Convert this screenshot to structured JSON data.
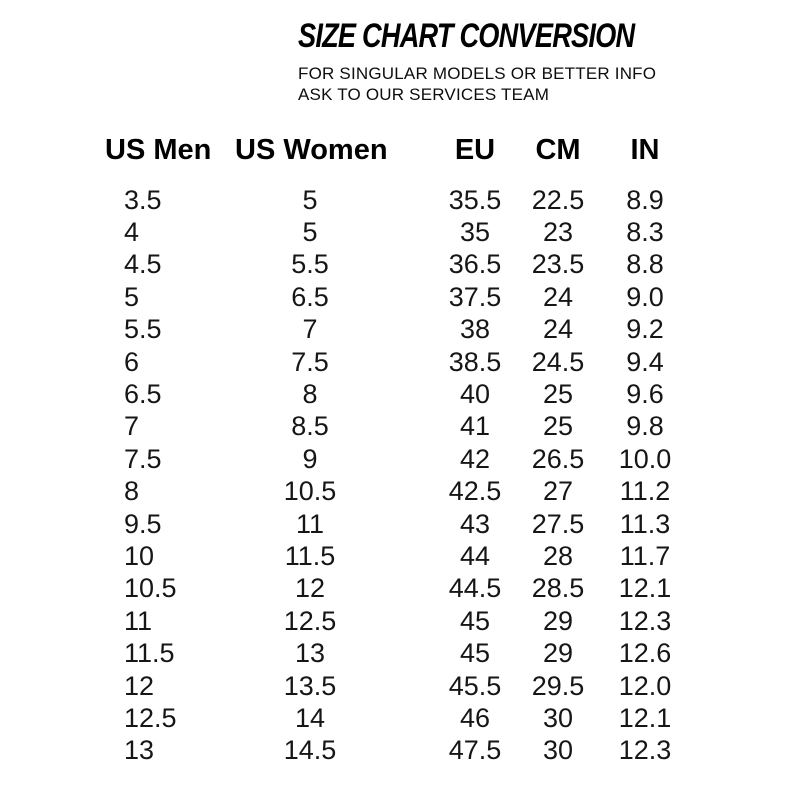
{
  "page": {
    "background": "#ffffff",
    "text_color": "#111111"
  },
  "header": {
    "title": "SIZE CHART CONVERSION",
    "subtitle_line1": "FOR SINGULAR MODELS OR BETTER INFO",
    "subtitle_line2": "ASK TO OUR SERVICES TEAM"
  },
  "chart_data": {
    "type": "table",
    "title": "SIZE CHART CONVERSION",
    "columns": [
      "US Men",
      "US Women",
      "EU",
      "CM",
      "IN"
    ],
    "rows": [
      [
        "3.5",
        "5",
        "35.5",
        "22.5",
        "8.9"
      ],
      [
        "4",
        "5",
        "35",
        "23",
        "8.3"
      ],
      [
        "4.5",
        "5.5",
        "36.5",
        "23.5",
        "8.8"
      ],
      [
        "5",
        "6.5",
        "37.5",
        "24",
        "9.0"
      ],
      [
        "5.5",
        "7",
        "38",
        "24",
        "9.2"
      ],
      [
        "6",
        "7.5",
        "38.5",
        "24.5",
        "9.4"
      ],
      [
        "6.5",
        "8",
        "40",
        "25",
        "9.6"
      ],
      [
        "7",
        "8.5",
        "41",
        "25",
        "9.8"
      ],
      [
        "7.5",
        "9",
        "42",
        "26.5",
        "10.0"
      ],
      [
        "8",
        "10.5",
        "42.5",
        "27",
        "11.2"
      ],
      [
        "9.5",
        "11",
        "43",
        "27.5",
        "11.3"
      ],
      [
        "10",
        "11.5",
        "44",
        "28",
        "11.7"
      ],
      [
        "10.5",
        "12",
        "44.5",
        "28.5",
        "12.1"
      ],
      [
        "11",
        "12.5",
        "45",
        "29",
        "12.3"
      ],
      [
        "11.5",
        "13",
        "45",
        "29",
        "12.6"
      ],
      [
        "12",
        "13.5",
        "45.5",
        "29.5",
        "12.0"
      ],
      [
        "12.5",
        "14",
        "46",
        "30",
        "12.1"
      ],
      [
        "13",
        "14.5",
        "47.5",
        "30",
        "12.3"
      ]
    ]
  }
}
